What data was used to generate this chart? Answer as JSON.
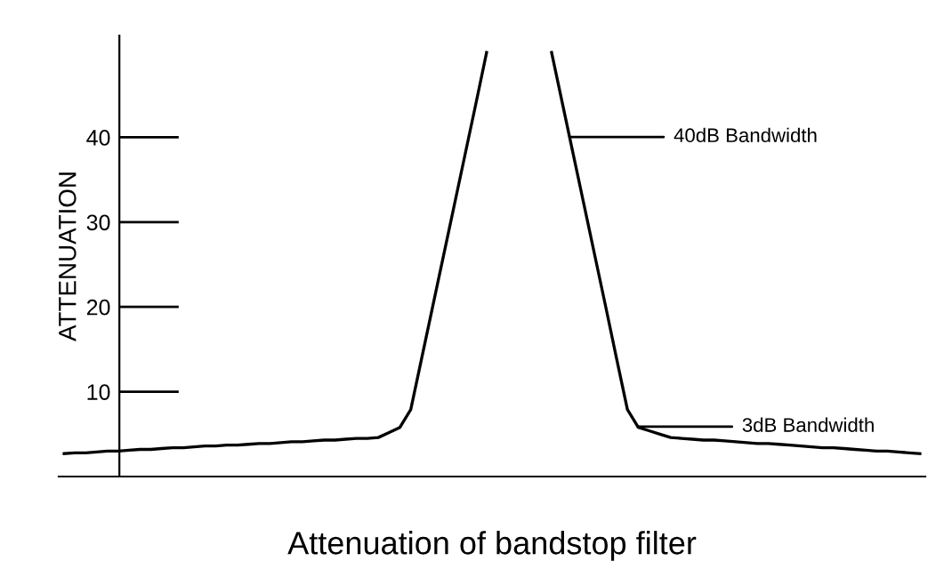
{
  "chart_data": {
    "type": "line",
    "xlabel": "Attenuation of bandstop filter",
    "ylabel": "ATTENUATION",
    "categories": [
      null,
      null,
      null,
      null,
      null,
      null,
      null,
      null,
      null,
      null,
      null,
      null,
      null,
      null,
      null,
      null,
      null,
      null,
      null,
      null,
      null,
      null,
      null,
      null,
      null,
      null,
      null,
      null,
      null,
      null,
      null,
      null,
      null,
      null,
      null,
      null,
      null,
      null,
      null,
      null,
      null,
      null,
      null,
      null,
      null,
      null,
      null,
      null,
      null,
      null,
      null,
      null,
      null,
      null,
      null,
      null,
      null,
      null,
      null,
      null,
      null,
      null,
      null,
      null,
      null,
      null,
      null,
      null,
      null,
      null,
      null,
      null,
      null,
      null,
      null,
      null,
      null,
      null,
      null,
      null
    ],
    "series": [
      {
        "color": "#000000",
        "values": [
          2.7,
          2.8,
          2.8,
          2.9,
          3.0,
          3.0,
          3.1,
          3.2,
          3.2,
          3.3,
          3.4,
          3.4,
          3.5,
          3.6,
          3.6,
          3.7,
          3.7,
          3.8,
          3.9,
          3.9,
          4.0,
          4.1,
          4.1,
          4.2,
          4.3,
          4.3,
          4.4,
          4.5,
          4.5,
          4.6,
          5.2,
          5.8,
          7.9,
          13.9,
          19.9,
          25.9,
          31.9,
          37.9,
          43.9,
          50,
          null,
          null,
          null,
          null,
          null,
          null,
          null,
          null,
          null,
          null,
          null,
          null,
          null,
          null,
          null,
          null,
          null,
          null,
          null,
          null,
          null,
          null,
          null,
          null,
          null,
          null,
          null,
          null,
          null,
          null,
          null,
          null,
          null,
          null,
          null,
          null,
          null,
          null,
          null,
          null
        ]
      },
      {
        "color": "#000000",
        "values": [
          null,
          null,
          null,
          null,
          null,
          null,
          null,
          null,
          null,
          null,
          null,
          null,
          null,
          null,
          null,
          null,
          null,
          null,
          null,
          null,
          null,
          null,
          null,
          null,
          null,
          null,
          null,
          null,
          null,
          null,
          null,
          null,
          null,
          null,
          null,
          null,
          null,
          null,
          null,
          null,
          null,
          null,
          null,
          null,
          null,
          50,
          44.0,
          38.0,
          32.0,
          26.0,
          20.0,
          13.9,
          7.9,
          5.8,
          5.4,
          5.0,
          4.6,
          4.5,
          4.4,
          4.3,
          4.3,
          4.2,
          4.1,
          4.0,
          3.9,
          3.9,
          3.8,
          3.7,
          3.6,
          3.5,
          3.4,
          3.4,
          3.3,
          3.2,
          3.1,
          3.0,
          3.0,
          2.9,
          2.8,
          2.7
        ]
      }
    ],
    "ylim": [
      0,
      52
    ],
    "yticks": [
      10,
      20,
      30,
      40
    ],
    "tick_labels": "y",
    "grid": false,
    "legend": false,
    "annotations": [
      "40dB Bandwidth",
      "3dB Bandwidth"
    ]
  }
}
